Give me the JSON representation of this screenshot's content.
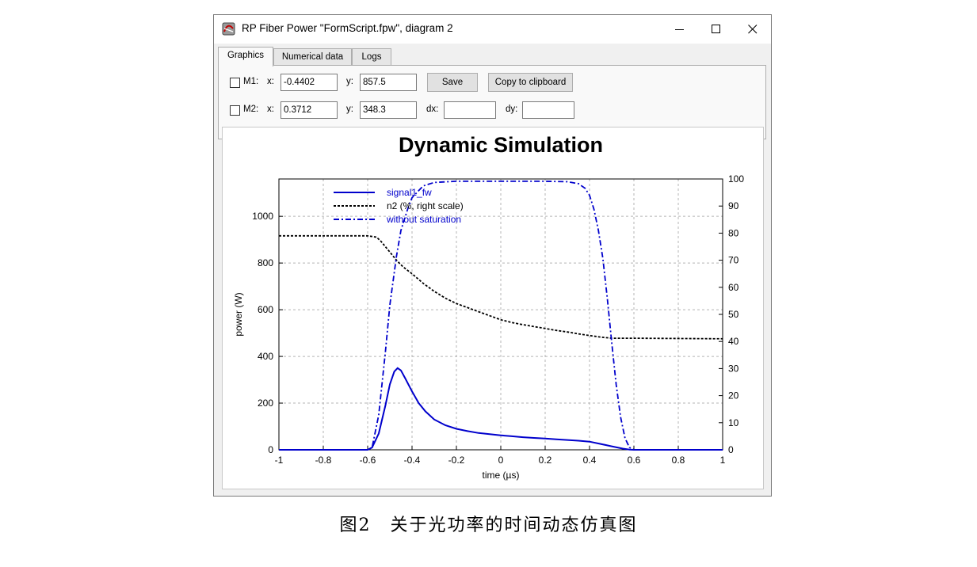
{
  "window": {
    "title": "RP Fiber Power \"FormScript.fpw\", diagram 2",
    "icons": {
      "app": "rp-fiber-power-icon",
      "minimize": "minimize-icon",
      "maximize": "maximize-icon",
      "close": "close-icon"
    }
  },
  "tabs": [
    {
      "label": "Graphics",
      "active": true
    },
    {
      "label": "Numerical data",
      "active": false
    },
    {
      "label": "Logs",
      "active": false
    }
  ],
  "markers": {
    "m1": {
      "label": "M1:",
      "checked": false,
      "x_label": "x:",
      "x_value": "-0.4402",
      "y_label": "y:",
      "y_value": "857.5"
    },
    "m2": {
      "label": "M2:",
      "checked": false,
      "x_label": "x:",
      "x_value": "0.3712",
      "y_label": "y:",
      "y_value": "348.3",
      "dx_label": "dx:",
      "dx_value": "",
      "dy_label": "dy:",
      "dy_value": ""
    }
  },
  "buttons": {
    "save": "Save",
    "copy": "Copy to clipboard"
  },
  "chart_data": {
    "type": "line",
    "title": "Dynamic Simulation",
    "xlabel": "time (µs)",
    "ylabel": "power (W)",
    "y2label": "",
    "xlim": [
      -1,
      1
    ],
    "ylim": [
      0,
      1160
    ],
    "y2lim": [
      0,
      100
    ],
    "xticks": [
      "-1",
      "-0.8",
      "-0.6",
      "-0.4",
      "-0.2",
      "0",
      "0.2",
      "0.4",
      "0.6",
      "0.8",
      "1"
    ],
    "yticks": [
      "0",
      "200",
      "400",
      "600",
      "800",
      "1000"
    ],
    "y2ticks": [
      "0",
      "10",
      "20",
      "30",
      "40",
      "50",
      "60",
      "70",
      "80",
      "90",
      "100"
    ],
    "grid": true,
    "legend_position": "top-left",
    "series": [
      {
        "name": "signal1_fw",
        "axis": "left",
        "color": "#0000cc",
        "style": "solid",
        "x": [
          -1,
          -0.6,
          -0.58,
          -0.55,
          -0.52,
          -0.5,
          -0.48,
          -0.465,
          -0.45,
          -0.43,
          -0.4,
          -0.37,
          -0.34,
          -0.3,
          -0.25,
          -0.2,
          -0.15,
          -0.1,
          -0.05,
          0,
          0.05,
          0.1,
          0.15,
          0.2,
          0.25,
          0.3,
          0.35,
          0.4,
          0.45,
          0.5,
          0.55,
          0.58,
          0.6,
          1
        ],
        "y": [
          0,
          0,
          10,
          70,
          190,
          280,
          335,
          350,
          340,
          305,
          250,
          200,
          165,
          130,
          105,
          90,
          80,
          72,
          67,
          62,
          58,
          54,
          51,
          48,
          45,
          42,
          39,
          35,
          25,
          15,
          5,
          1,
          0,
          0
        ]
      },
      {
        "name": "n2 (%, right scale)",
        "axis": "right",
        "color": "#000000",
        "style": "dotted",
        "x": [
          -1,
          -0.6,
          -0.56,
          -0.54,
          -0.52,
          -0.5,
          -0.47,
          -0.44,
          -0.4,
          -0.35,
          -0.3,
          -0.25,
          -0.2,
          -0.15,
          -0.1,
          -0.05,
          0,
          0.05,
          0.1,
          0.15,
          0.2,
          0.25,
          0.3,
          0.35,
          0.4,
          0.45,
          0.5,
          0.6,
          1
        ],
        "y": [
          79,
          79,
          78.5,
          77,
          75,
          73,
          70,
          67.5,
          65,
          61.5,
          58.5,
          56,
          54,
          52.5,
          51,
          49.5,
          48,
          47,
          46.2,
          45.5,
          44.8,
          44.1,
          43.5,
          42.8,
          42.2,
          41.6,
          41.2,
          41.2,
          41
        ]
      },
      {
        "name": "without saturation",
        "axis": "left",
        "color": "#0000cc",
        "style": "dashdot",
        "x": [
          -1,
          -0.6,
          -0.58,
          -0.55,
          -0.52,
          -0.5,
          -0.47,
          -0.45,
          -0.42,
          -0.4,
          -0.35,
          -0.3,
          -0.2,
          0,
          0.2,
          0.3,
          0.35,
          0.38,
          0.4,
          0.42,
          0.44,
          0.46,
          0.48,
          0.5,
          0.52,
          0.54,
          0.56,
          0.58,
          0.6,
          1
        ],
        "y": [
          0,
          0,
          10,
          150,
          420,
          620,
          830,
          940,
          1030,
          1080,
          1130,
          1145,
          1150,
          1150,
          1150,
          1148,
          1140,
          1120,
          1090,
          1030,
          940,
          820,
          650,
          460,
          280,
          140,
          50,
          10,
          0,
          0
        ]
      }
    ]
  },
  "caption": "图2　关于光功率的时间动态仿真图"
}
